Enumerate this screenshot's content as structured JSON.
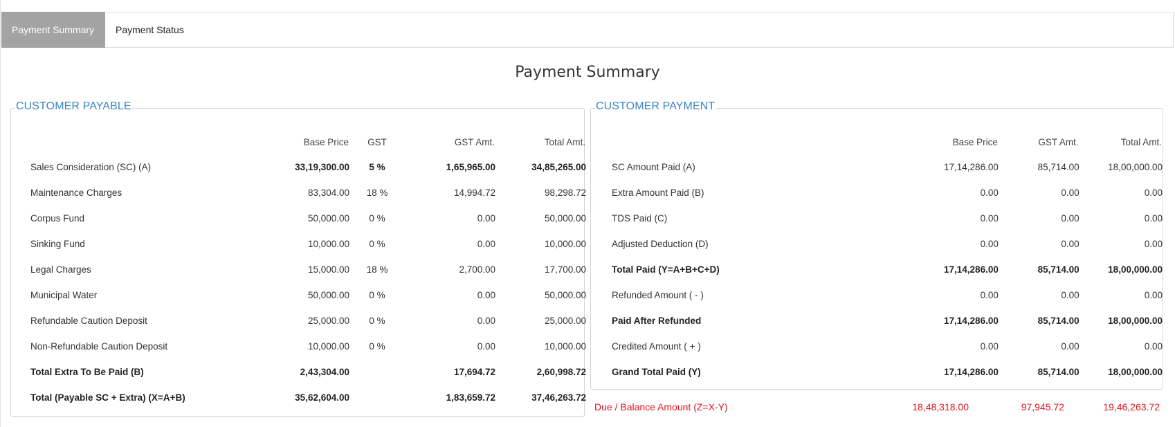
{
  "tabs": [
    {
      "label": "Payment Summary",
      "active": true
    },
    {
      "label": "Payment Status",
      "active": false
    }
  ],
  "page_title": "Payment Summary",
  "customer_payable": {
    "legend": "CUSTOMER PAYABLE",
    "headers": [
      "",
      "Base Price",
      "GST",
      "GST Amt.",
      "Total Amt."
    ],
    "rows": [
      {
        "label": "Sales Consideration (SC) (A)",
        "base": "33,19,300.00",
        "gst": "5 %",
        "gst_amt": "1,65,965.00",
        "total": "34,85,265.00",
        "bold": true,
        "label_bold": false
      },
      {
        "label": "Maintenance Charges",
        "base": "83,304.00",
        "gst": "18 %",
        "gst_amt": "14,994.72",
        "total": "98,298.72"
      },
      {
        "label": "Corpus Fund",
        "base": "50,000.00",
        "gst": "0 %",
        "gst_amt": "0.00",
        "total": "50,000.00"
      },
      {
        "label": "Sinking Fund",
        "base": "10,000.00",
        "gst": "0 %",
        "gst_amt": "0.00",
        "total": "10,000.00"
      },
      {
        "label": "Legal Charges",
        "base": "15,000.00",
        "gst": "18 %",
        "gst_amt": "2,700.00",
        "total": "17,700.00"
      },
      {
        "label": "Municipal Water",
        "base": "50,000.00",
        "gst": "0 %",
        "gst_amt": "0.00",
        "total": "50,000.00"
      },
      {
        "label": "Refundable Caution Deposit",
        "base": "25,000.00",
        "gst": "0 %",
        "gst_amt": "0.00",
        "total": "25,000.00"
      },
      {
        "label": "Non-Refundable Caution Deposit",
        "base": "10,000.00",
        "gst": "0 %",
        "gst_amt": "0.00",
        "total": "10,000.00"
      },
      {
        "label": "Total Extra To Be Paid (B)",
        "base": "2,43,304.00",
        "gst": "",
        "gst_amt": "17,694.72",
        "total": "2,60,998.72",
        "bold": true,
        "label_bold": true
      },
      {
        "label": "Total (Payable SC + Extra) (X=A+B)",
        "base": "35,62,604.00",
        "gst": "",
        "gst_amt": "1,83,659.72",
        "total": "37,46,263.72",
        "bold": true,
        "label_bold": true
      }
    ]
  },
  "customer_payment": {
    "legend": "CUSTOMER PAYMENT",
    "headers": [
      "",
      "Base Price",
      "GST Amt.",
      "Total Amt."
    ],
    "rows": [
      {
        "label": "SC Amount Paid (A)",
        "base": "17,14,286.00",
        "gst_amt": "85,714.00",
        "total": "18,00,000.00"
      },
      {
        "label": "Extra Amount Paid (B)",
        "base": "0.00",
        "gst_amt": "0.00",
        "total": "0.00"
      },
      {
        "label": "TDS Paid (C)",
        "base": "0.00",
        "gst_amt": "0.00",
        "total": "0.00"
      },
      {
        "label": "Adjusted Deduction (D)",
        "base": "0.00",
        "gst_amt": "0.00",
        "total": "0.00"
      },
      {
        "label": "Total Paid (Y=A+B+C+D)",
        "base": "17,14,286.00",
        "gst_amt": "85,714.00",
        "total": "18,00,000.00",
        "bold": true
      },
      {
        "label": "Refunded Amount ( - )",
        "base": "0.00",
        "gst_amt": "0.00",
        "total": "0.00"
      },
      {
        "label": "Paid After Refunded",
        "base": "17,14,286.00",
        "gst_amt": "85,714.00",
        "total": "18,00,000.00",
        "bold": true
      },
      {
        "label": "Credited Amount ( + )",
        "base": "0.00",
        "gst_amt": "0.00",
        "total": "0.00"
      },
      {
        "label": "Grand Total Paid (Y)",
        "base": "17,14,286.00",
        "gst_amt": "85,714.00",
        "total": "18,00,000.00",
        "bold": true
      }
    ]
  },
  "due": {
    "label": "Due / Balance Amount (Z=X-Y)",
    "base": "18,48,318.00",
    "gst_amt": "97,945.72",
    "total": "19,46,263.72",
    "color": "#e0141e"
  },
  "colors": {
    "accent": "#3a86c6",
    "active_tab_bg": "#a3a3a3",
    "due_red": "#e0141e"
  }
}
